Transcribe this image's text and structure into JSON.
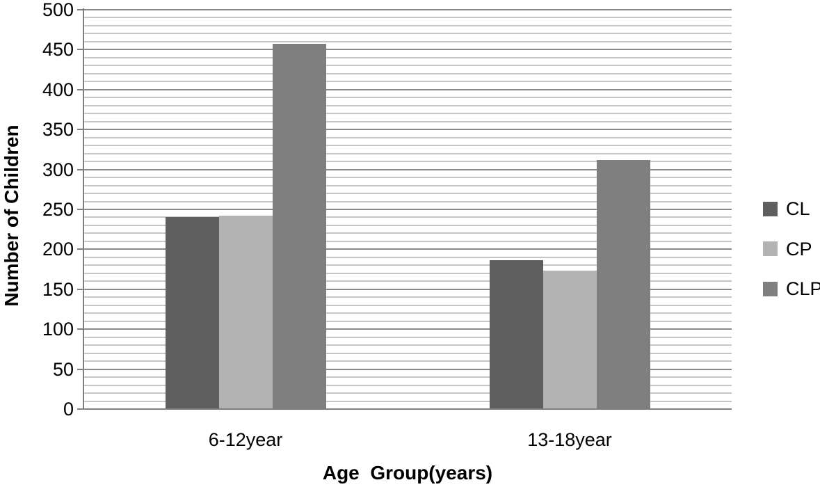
{
  "chart_data": {
    "type": "bar",
    "title": "",
    "xlabel": "Age  Group(years)",
    "ylabel": "Number of Children",
    "categories": [
      "6-12year",
      "13-18year"
    ],
    "series": [
      {
        "name": "CL",
        "color": "#5f5f5f",
        "values": [
          240,
          186
        ]
      },
      {
        "name": "CP",
        "color": "#b3b3b3",
        "values": [
          242,
          173
        ]
      },
      {
        "name": "CLP",
        "color": "#7f7f7f",
        "values": [
          457,
          312
        ]
      }
    ],
    "ylim": [
      0,
      500
    ],
    "y_major_step": 50,
    "y_minor_step": 10,
    "y_tick_labels": [
      "0",
      "50",
      "100",
      "150",
      "200",
      "250",
      "300",
      "350",
      "400",
      "450",
      "500"
    ],
    "grid": true,
    "legend_position": "right"
  },
  "colors": {
    "minor_gridline": "#c6c6c6",
    "major_gridline": "#8a8a8a",
    "axis": "#7f7f7f",
    "text": "#000000",
    "background": "#ffffff"
  }
}
